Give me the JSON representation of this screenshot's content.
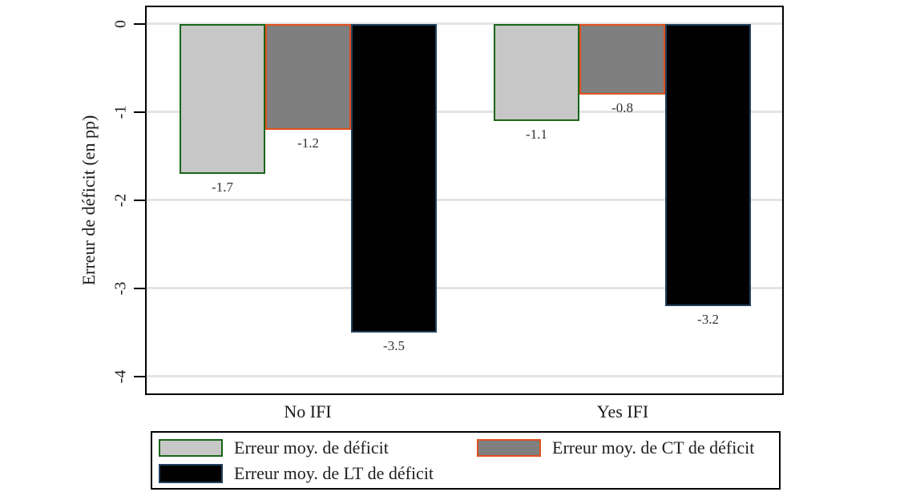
{
  "chart_data": {
    "type": "bar",
    "title": "",
    "xlabel": "",
    "ylabel": "Erreur de déficit (en pp)",
    "ylim": [
      -4,
      0
    ],
    "yticks": [
      0,
      -1,
      -2,
      -3,
      -4
    ],
    "ytick_labels": [
      "0",
      "-1",
      "-2",
      "-3",
      "-4"
    ],
    "categories": [
      "No IFI",
      "Yes IFI"
    ],
    "series": [
      {
        "name": "Erreur moy. de déficit",
        "values": [
          -1.7,
          -1.1
        ],
        "value_labels": [
          "-1.7",
          "-1.1"
        ],
        "fill": "#c7c7c7",
        "border": "#1a661a"
      },
      {
        "name": "Erreur moy. de CT de déficit",
        "values": [
          -1.2,
          -0.8
        ],
        "value_labels": [
          "-1.2",
          "-0.8"
        ],
        "fill": "#7f7f7f",
        "border": "#e0501c"
      },
      {
        "name": "Erreur moy. de LT de déficit",
        "values": [
          -3.5,
          -3.2
        ],
        "value_labels": [
          "-3.5",
          "-3.2"
        ],
        "fill": "#010101",
        "border": "#22405c"
      }
    ],
    "grid": true,
    "gridline_color": "#e4e4e4",
    "legend_position": "bottom",
    "tick_label_rotation_deg": -90
  },
  "colors": {
    "axis_line": "#000000",
    "text": "#1a1a1a",
    "value_label_text": "#333333",
    "background": "#ffffff"
  }
}
